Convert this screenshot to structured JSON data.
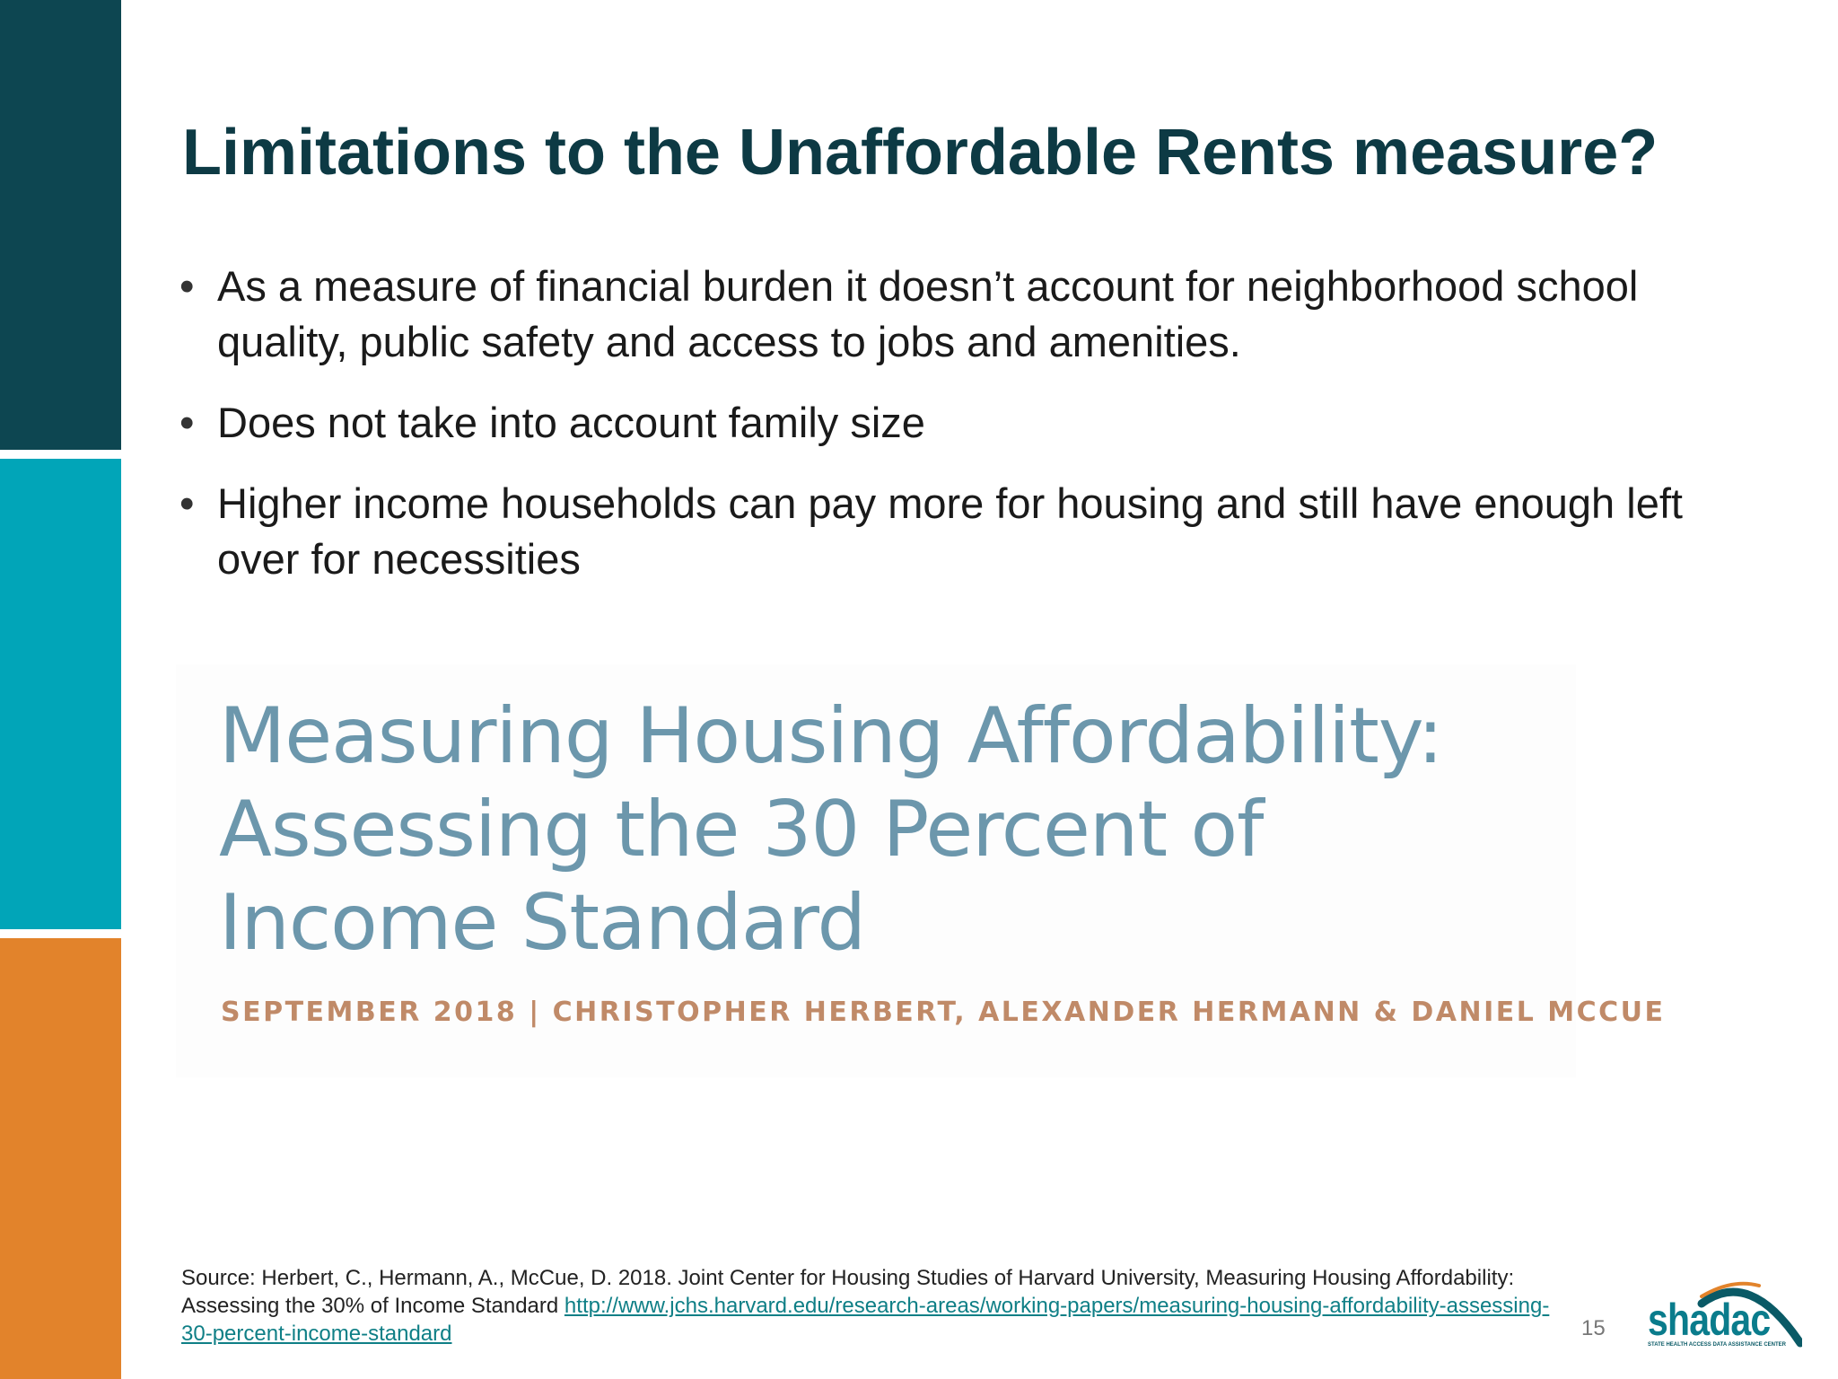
{
  "slide": {
    "title": "Limitations to the Unaffordable Rents measure?",
    "bullets": [
      "As a measure of financial burden it doesn’t account for neighborhood school quality, public safety and access to jobs and amenities.",
      "Does not take into account family size",
      "Higher income households can pay more for housing and still have enough left over for necessities"
    ],
    "bullet_marker": "•",
    "report": {
      "title_lines": [
        "Measuring Housing Affordability:",
        "Assessing the 30 Percent of",
        "Income Standard"
      ],
      "byline": "SEPTEMBER 2018 | CHRISTOPHER HERBERT, ALEXANDER HERMANN & DANIEL MCCUE"
    },
    "source": {
      "text": "Source: Herbert, C., Hermann, A., McCue, D. 2018. Joint Center for Housing Studies of Harvard University, Measuring Housing Affordability: Assessing the 30% of Income Standard ",
      "link": "http://www.jchs.harvard.edu/research-areas/working-papers/measuring-housing-affordability-assessing-30-percent-income-standard"
    },
    "page_number": "15",
    "logo": {
      "name": "shadac",
      "tagline": "STATE HEALTH ACCESS DATA ASSISTANCE CENTER",
      "icon": "shadac-logo-arc"
    }
  },
  "colors": {
    "bar_dark": "#0d4651",
    "bar_teal": "#01a5b8",
    "bar_orange": "#e2832b",
    "title": "#0d3a44",
    "report_title": "#6c97ac",
    "report_byline": "#c08a68",
    "link": "#0f7f86"
  }
}
